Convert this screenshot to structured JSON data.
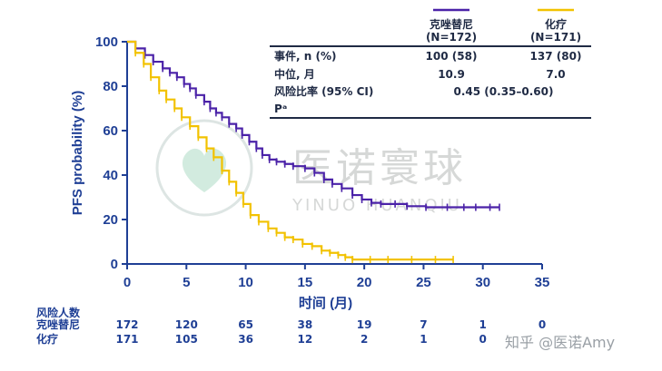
{
  "chart_data": {
    "type": "line",
    "ylabel": "PFS probability (%)",
    "xlabel": "时间 (月)",
    "xlim": [
      0,
      35
    ],
    "ylim": [
      0,
      100
    ],
    "x_ticks": [
      "0",
      "5",
      "10",
      "15",
      "20",
      "25",
      "30",
      "35"
    ],
    "y_ticks": [
      "0",
      "20",
      "40",
      "60",
      "80",
      "100"
    ],
    "grid": false,
    "colors": {
      "crizotinib": "#4b22a8",
      "chemo": "#f2c200",
      "axis": "#1f3f95"
    },
    "series": [
      {
        "name": "克唑替尼",
        "n_label": "(N=172)",
        "color": "#4b22a8",
        "x": [
          0,
          0.7,
          1.5,
          2.2,
          3.0,
          3.6,
          4.2,
          4.8,
          5.3,
          5.8,
          6.5,
          7.0,
          7.5,
          8.0,
          8.6,
          9.2,
          9.7,
          10.3,
          10.9,
          11.4,
          12.0,
          12.6,
          13.3,
          14.0,
          15.0,
          15.8,
          16.6,
          17.3,
          18.1,
          19.0,
          19.8,
          20.6,
          21.4,
          22.6,
          23.6,
          25.2,
          27.0,
          28.4,
          29.4,
          30.6,
          31.4
        ],
        "y": [
          100,
          97,
          94,
          91,
          88,
          86,
          84,
          81,
          79,
          76,
          73,
          70,
          68,
          66,
          63,
          61,
          58,
          55,
          52,
          49,
          47,
          46,
          45,
          44,
          43,
          41,
          38,
          36,
          34,
          31,
          29,
          27.5,
          27,
          27,
          26,
          25.5,
          25.5,
          25.5,
          25.5,
          25.5,
          25.5
        ]
      },
      {
        "name": "化疗",
        "n_label": "(N=171)",
        "color": "#f2c200",
        "x": [
          0,
          0.7,
          1.4,
          2.0,
          2.7,
          3.3,
          4.0,
          4.6,
          5.3,
          6.0,
          6.7,
          7.3,
          8.0,
          8.6,
          9.2,
          9.8,
          10.4,
          11.1,
          11.9,
          12.6,
          13.3,
          14.0,
          14.8,
          15.6,
          16.4,
          17.1,
          17.8,
          18.4,
          19.0,
          20.5,
          22.0,
          24.0,
          26.0,
          27.5
        ],
        "y": [
          100,
          95,
          90,
          84,
          78,
          74,
          70,
          66,
          62,
          57,
          52,
          48,
          42,
          37,
          32,
          27,
          22,
          19,
          16,
          14,
          12,
          11,
          9,
          8,
          6,
          5,
          4,
          3,
          2,
          2,
          2,
          2,
          2,
          2
        ]
      }
    ],
    "table": {
      "headers": [
        "克唑替尼",
        "化疗"
      ],
      "n_labels": [
        "(N=172)",
        "(N=171)"
      ],
      "rows": [
        {
          "label": "事件, n (%)",
          "values": [
            "100 (58)",
            "137 (80)"
          ]
        },
        {
          "label": "中位, 月",
          "values": [
            "10.9",
            "7.0"
          ]
        },
        {
          "label": "风险比率 (95% CI)",
          "values": [
            "0.45 (0.35–0.60)"
          ]
        },
        {
          "label": "Pᵃ",
          "values": [
            ""
          ]
        }
      ]
    },
    "at_risk": {
      "title": "风险人数",
      "rows": [
        {
          "label": "克唑替尼",
          "values": [
            "172",
            "120",
            "65",
            "38",
            "19",
            "7",
            "1",
            "0"
          ]
        },
        {
          "label": "化疗",
          "values": [
            "171",
            "105",
            "36",
            "12",
            "2",
            "1",
            "0",
            ""
          ]
        }
      ]
    }
  },
  "watermark": {
    "text": "医诺寰球",
    "subtext": "YINUO HUANQIU",
    "credit": "知乎 @医诺Amy"
  }
}
